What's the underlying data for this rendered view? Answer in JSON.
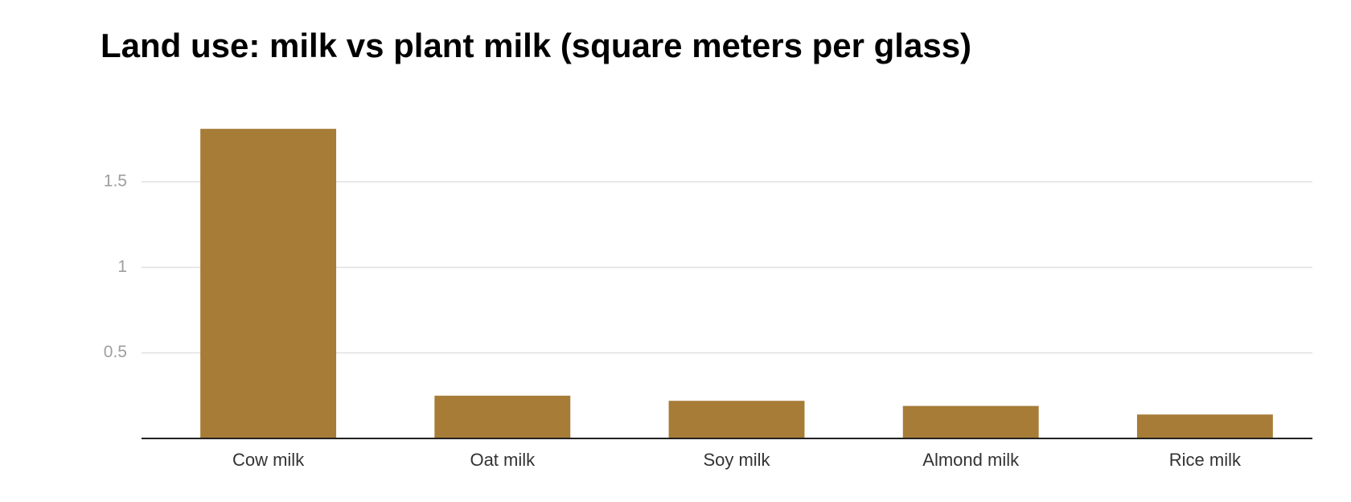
{
  "chart_data": {
    "type": "bar",
    "title": "Land use: milk vs plant milk (square meters per glass)",
    "categories": [
      "Cow milk",
      "Oat milk",
      "Soy milk",
      "Almond milk",
      "Rice milk"
    ],
    "values": [
      1.81,
      0.25,
      0.22,
      0.19,
      0.14
    ],
    "color": "#a67c37",
    "ylim": [
      0,
      1.9
    ],
    "yticks": [
      0.5,
      1,
      1.5
    ],
    "grid": true
  }
}
